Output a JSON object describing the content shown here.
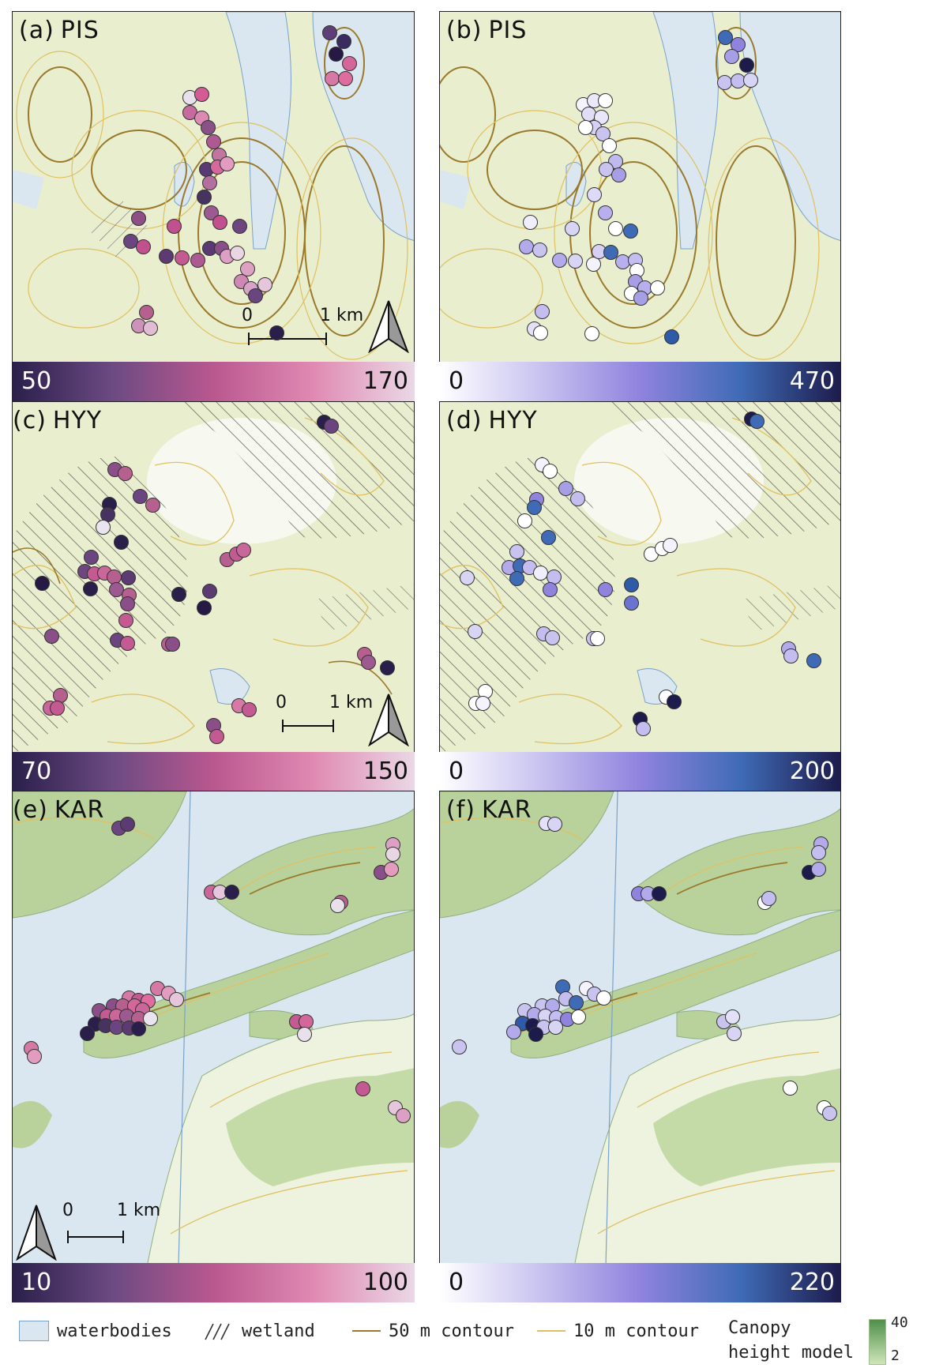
{
  "panels": [
    {
      "id": "a",
      "label": "(a)",
      "site": "PIS",
      "type": "abundance"
    },
    {
      "id": "b",
      "label": "(b)",
      "site": "PIS",
      "type": "richness"
    },
    {
      "id": "c",
      "label": "(c)",
      "site": "HYY",
      "type": "abundance"
    },
    {
      "id": "d",
      "label": "(d)",
      "site": "HYY",
      "type": "richness"
    },
    {
      "id": "e",
      "label": "(e)",
      "site": "KAR",
      "type": "abundance"
    },
    {
      "id": "f",
      "label": "(f)",
      "site": "KAR",
      "type": "richness"
    }
  ],
  "colorbars": [
    {
      "id": "a",
      "min": "50",
      "max": "170",
      "palette": [
        "#2a1f4b",
        "#6c4a82",
        "#b9588f",
        "#e08ab2",
        "#ead8e6"
      ]
    },
    {
      "id": "b",
      "min": "0",
      "max": "470",
      "palette": [
        "#ffffff",
        "#c9c3f0",
        "#8f83de",
        "#3f6bb6",
        "#1d1b4b"
      ]
    },
    {
      "id": "c",
      "min": "70",
      "max": "150",
      "palette": [
        "#2a1f4b",
        "#6c4a82",
        "#b9588f",
        "#e08ab2",
        "#ead8e6"
      ]
    },
    {
      "id": "d",
      "min": "0",
      "max": "200",
      "palette": [
        "#ffffff",
        "#c9c3f0",
        "#8f83de",
        "#3f6bb6",
        "#1d1b4b"
      ]
    },
    {
      "id": "e",
      "min": "10",
      "max": "100",
      "palette": [
        "#2a1f4b",
        "#6c4a82",
        "#b9588f",
        "#e08ab2",
        "#ead8e6"
      ]
    },
    {
      "id": "f",
      "min": "0",
      "max": "220",
      "palette": [
        "#ffffff",
        "#c9c3f0",
        "#8f83de",
        "#3f6bb6",
        "#1d1b4b"
      ]
    }
  ],
  "scale_bar": {
    "start": "0",
    "end": "1 km"
  },
  "north_arrow": "north-arrow-icon",
  "legend": {
    "waterbodies": "waterbodies",
    "wetland": "wetland",
    "contour_50": "50 m contour",
    "contour_10": "10 m contour",
    "chm_line1": "Canopy",
    "chm_line2": "height model",
    "chm_max": "40",
    "chm_min": "2"
  },
  "colors": {
    "water": "#dae6f0",
    "land": "#e7eecf",
    "forest": "#b7d39b",
    "contour50": "#9a7a2a",
    "contour10": "#e0c060"
  }
}
